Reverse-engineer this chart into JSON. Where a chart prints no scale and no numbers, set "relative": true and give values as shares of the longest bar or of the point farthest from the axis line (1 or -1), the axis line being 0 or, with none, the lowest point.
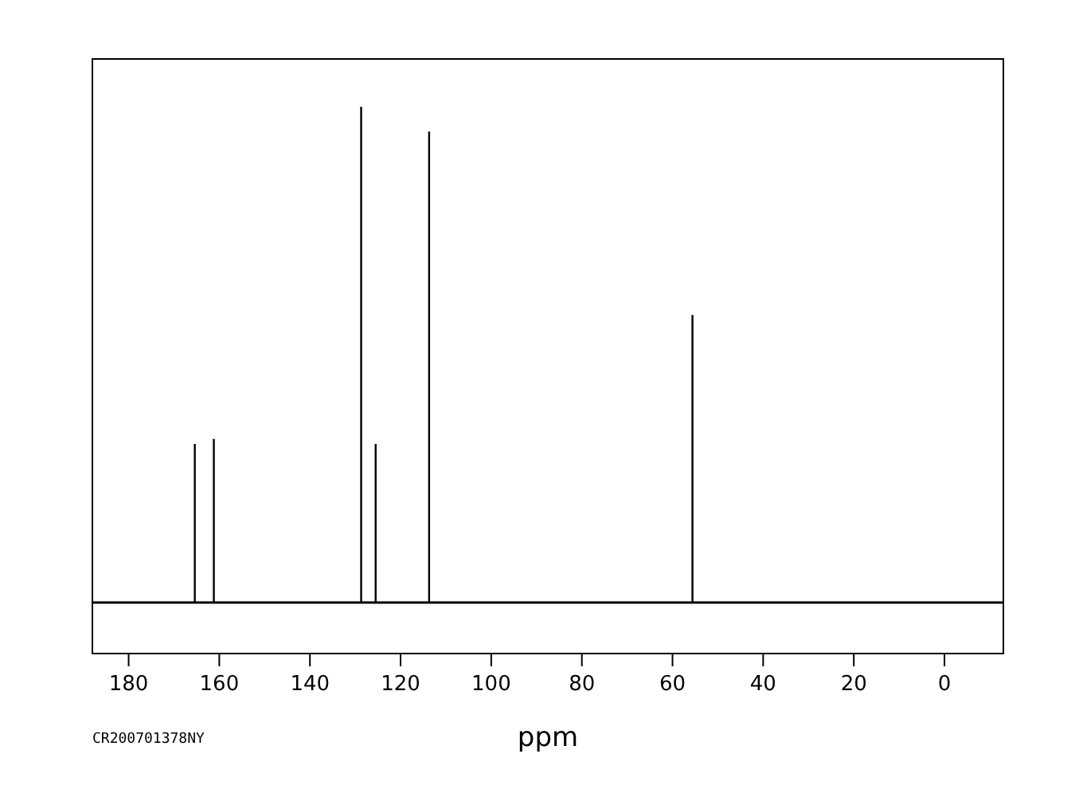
{
  "chart_data": {
    "type": "bar",
    "relative": true,
    "xlabel": "ppm",
    "annotations": [
      "CR200701378NY"
    ],
    "xlim": [
      188,
      -13
    ],
    "xticks": [
      180,
      160,
      140,
      120,
      100,
      80,
      60,
      40,
      20,
      0
    ],
    "tick_labels": "x",
    "x": [
      165.4,
      161.2,
      128.7,
      125.5,
      113.7,
      55.6
    ],
    "series": [
      {
        "color": "#000000",
        "values": [
          0.32,
          0.33,
          1,
          0.32,
          0.95,
          0.58
        ]
      }
    ]
  }
}
